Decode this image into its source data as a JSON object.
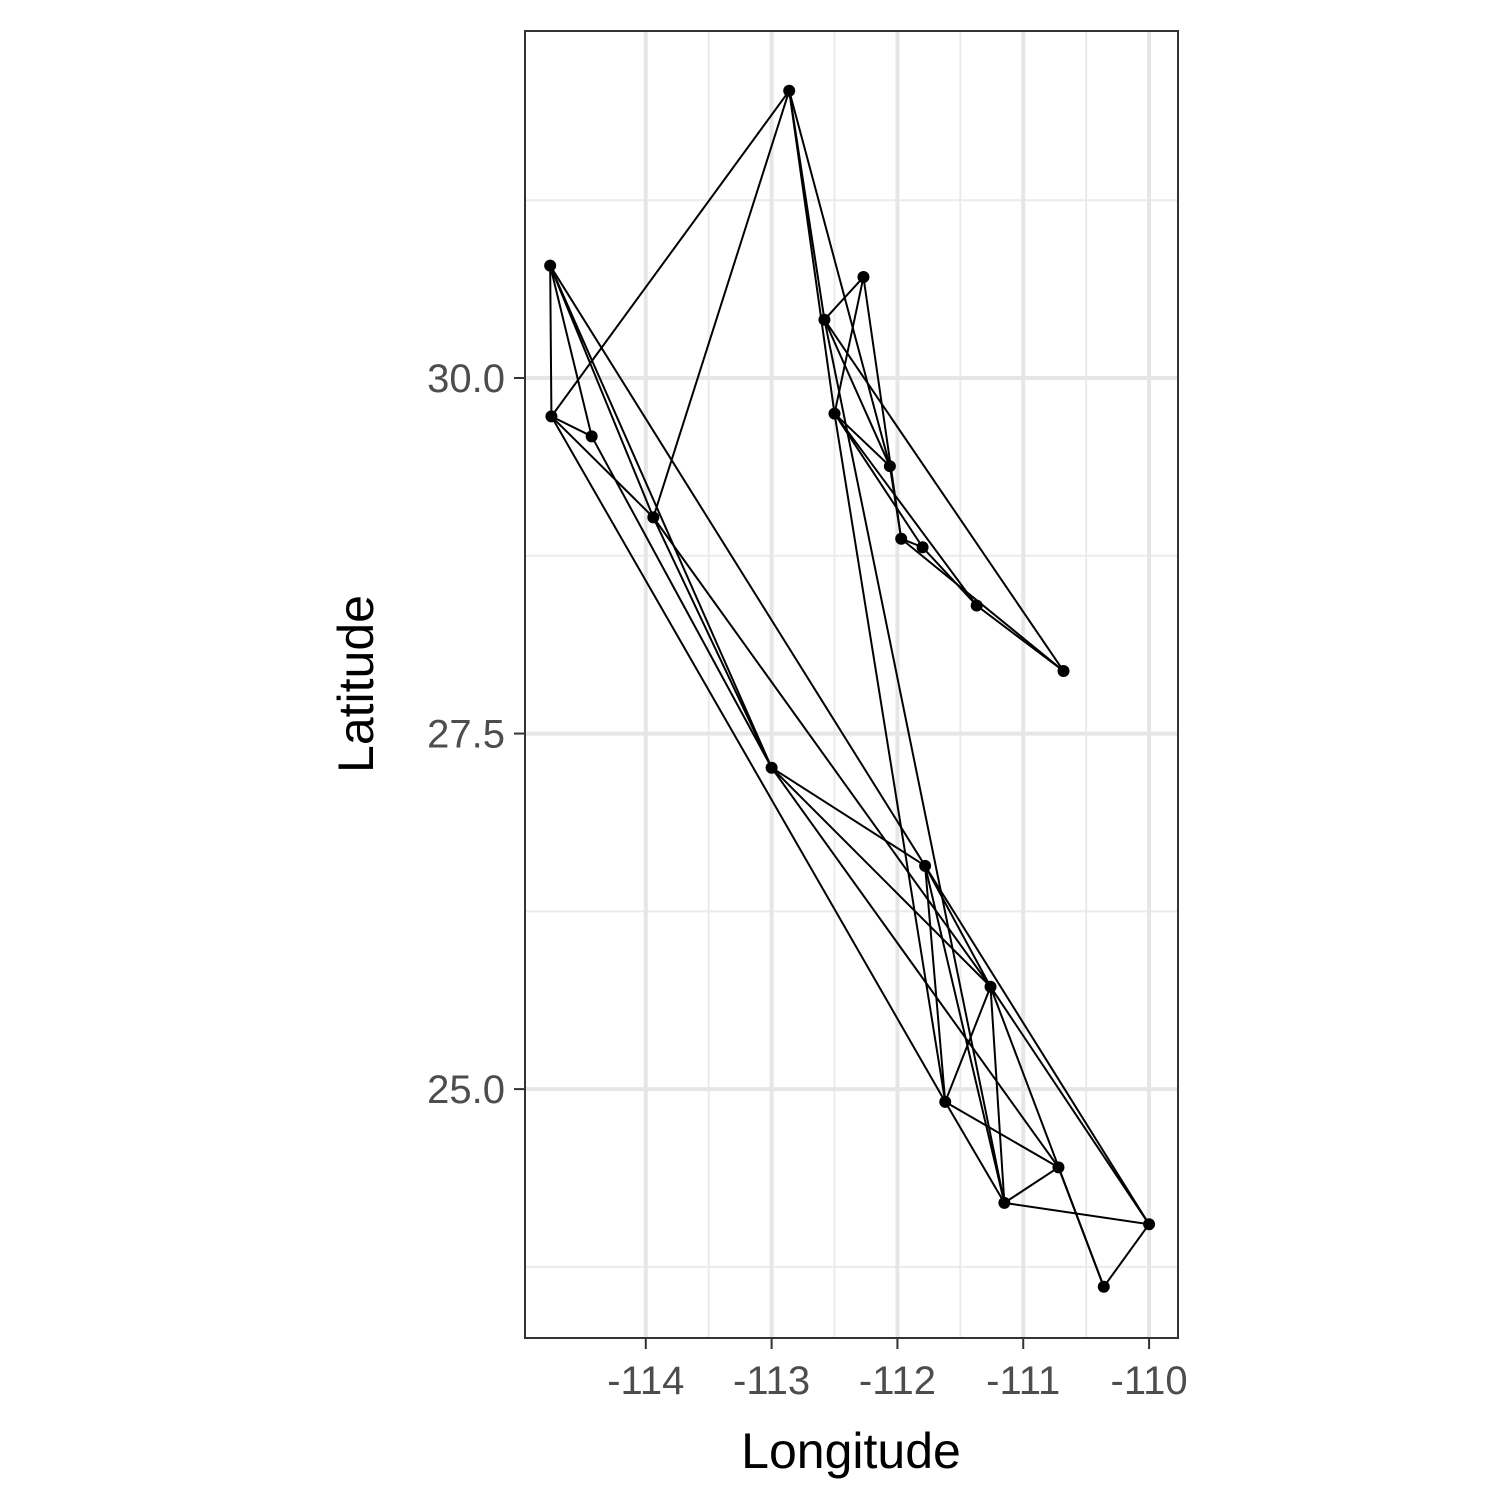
{
  "chart_data": {
    "type": "scatter",
    "subtype": "network",
    "title": "",
    "xlabel": "Longitude",
    "ylabel": "Latitude",
    "xlim": [
      -114.96,
      -109.77
    ],
    "ylim": [
      23.25,
      32.44
    ],
    "xticks": [
      -114,
      -113,
      -112,
      -111,
      -110
    ],
    "xtick_labels": [
      "-114",
      "-113",
      "-112",
      "-111",
      "-110"
    ],
    "yticks": [
      25.0,
      27.5,
      30.0
    ],
    "ytick_labels": [
      "25.0",
      "27.5",
      "30.0"
    ],
    "grid": true,
    "legend": "none",
    "nodes": [
      {
        "id": "n1",
        "x": -114.76,
        "y": 30.79
      },
      {
        "id": "n2",
        "x": -114.75,
        "y": 29.73
      },
      {
        "id": "n3",
        "x": -114.43,
        "y": 29.59
      },
      {
        "id": "n4",
        "x": -113.94,
        "y": 29.02
      },
      {
        "id": "n5",
        "x": -112.86,
        "y": 32.02
      },
      {
        "id": "n6",
        "x": -112.27,
        "y": 30.71
      },
      {
        "id": "n7",
        "x": -112.58,
        "y": 30.41
      },
      {
        "id": "n8",
        "x": -112.5,
        "y": 29.75
      },
      {
        "id": "n9",
        "x": -112.06,
        "y": 29.38
      },
      {
        "id": "n10",
        "x": -111.97,
        "y": 28.87
      },
      {
        "id": "n11",
        "x": -111.8,
        "y": 28.81
      },
      {
        "id": "n12",
        "x": -111.37,
        "y": 28.4
      },
      {
        "id": "n13",
        "x": -110.68,
        "y": 27.94
      },
      {
        "id": "n14",
        "x": -113.0,
        "y": 27.26
      },
      {
        "id": "n15",
        "x": -111.78,
        "y": 26.57
      },
      {
        "id": "n16",
        "x": -111.26,
        "y": 25.72
      },
      {
        "id": "n17",
        "x": -111.62,
        "y": 24.91
      },
      {
        "id": "n18",
        "x": -110.72,
        "y": 24.45
      },
      {
        "id": "n19",
        "x": -111.15,
        "y": 24.2
      },
      {
        "id": "n20",
        "x": -110.0,
        "y": 24.05
      },
      {
        "id": "n21",
        "x": -110.36,
        "y": 23.61
      }
    ],
    "edges": [
      [
        "n1",
        "n2"
      ],
      [
        "n1",
        "n3"
      ],
      [
        "n1",
        "n4"
      ],
      [
        "n1",
        "n14"
      ],
      [
        "n1",
        "n15"
      ],
      [
        "n2",
        "n5"
      ],
      [
        "n2",
        "n4"
      ],
      [
        "n2",
        "n3"
      ],
      [
        "n2",
        "n17"
      ],
      [
        "n3",
        "n14"
      ],
      [
        "n4",
        "n5"
      ],
      [
        "n4",
        "n14"
      ],
      [
        "n4",
        "n16"
      ],
      [
        "n5",
        "n7"
      ],
      [
        "n5",
        "n9"
      ],
      [
        "n5",
        "n8"
      ],
      [
        "n6",
        "n7"
      ],
      [
        "n6",
        "n8"
      ],
      [
        "n6",
        "n10"
      ],
      [
        "n7",
        "n9"
      ],
      [
        "n7",
        "n13"
      ],
      [
        "n7",
        "n19"
      ],
      [
        "n8",
        "n9"
      ],
      [
        "n8",
        "n11"
      ],
      [
        "n8",
        "n12"
      ],
      [
        "n8",
        "n17"
      ],
      [
        "n9",
        "n10"
      ],
      [
        "n10",
        "n11"
      ],
      [
        "n10",
        "n13"
      ],
      [
        "n11",
        "n12"
      ],
      [
        "n12",
        "n13"
      ],
      [
        "n14",
        "n15"
      ],
      [
        "n14",
        "n16"
      ],
      [
        "n14",
        "n18"
      ],
      [
        "n15",
        "n16"
      ],
      [
        "n15",
        "n17"
      ],
      [
        "n15",
        "n19"
      ],
      [
        "n15",
        "n20"
      ],
      [
        "n16",
        "n17"
      ],
      [
        "n16",
        "n19"
      ],
      [
        "n16",
        "n21"
      ],
      [
        "n16",
        "n20"
      ],
      [
        "n17",
        "n18"
      ],
      [
        "n17",
        "n19"
      ],
      [
        "n18",
        "n19"
      ],
      [
        "n18",
        "n21"
      ],
      [
        "n19",
        "n20"
      ],
      [
        "n20",
        "n21"
      ]
    ]
  }
}
